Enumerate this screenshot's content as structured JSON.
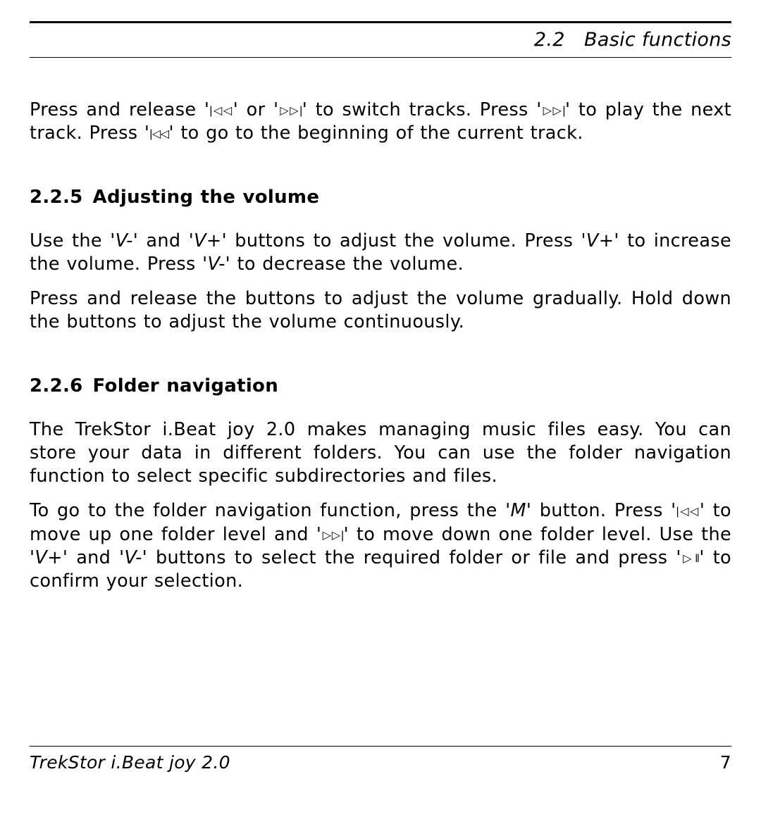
{
  "header": {
    "section": "2.2 Basic functions"
  },
  "intro": {
    "p1_a": "Press and release '",
    "p1_sym1": "|◁◁",
    "p1_b": "' or '",
    "p1_sym2": "▷▷|",
    "p1_c": "' to switch tracks.  Press '",
    "p1_sym3": "▷▷|",
    "p1_d": "' to play the next track.  Press '",
    "p1_sym4": "|◁◁",
    "p1_e": "' to go to the beginning of the current track."
  },
  "sec225": {
    "num": "2.2.5",
    "title": "Adjusting the volume",
    "p1_a": "Use the ",
    "p1_vminus": "'V-'",
    "p1_b": " and ",
    "p1_vplus": "'V+'",
    "p1_c": " buttons to adjust the volume.  Press ",
    "p1_vplus2": "'V+'",
    "p1_d": " to increase the volume.  Press ",
    "p1_vminus2": "'V-'",
    "p1_e": " to decrease the volume.",
    "p2": "Press and release the buttons to adjust the volume gradually.  Hold down the buttons to adjust the volume continuously."
  },
  "sec226": {
    "num": "2.2.6",
    "title": "Folder navigation",
    "p1": "The TrekStor i.Beat joy 2.0 makes managing music files easy.  You can store your data in different folders.  You can use the folder navigation function to select specific subdirectories and files.",
    "p2_a": "To go to the folder navigation function, press the ",
    "p2_m": "'M'",
    "p2_b": " button.  Press '",
    "p2_sym1": "|◁◁",
    "p2_c": "' to move up one folder level and '",
    "p2_sym2": "▷▷|",
    "p2_d": "' to move down one folder level.  Use the ",
    "p2_vplus": "'V+'",
    "p2_e": " and ",
    "p2_vminus": "'V-'",
    "p2_f": " buttons to select the required folder or file and press '",
    "p2_sym3": "▷ ‖",
    "p2_g": "' to confirm your selection."
  },
  "footer": {
    "product": "TrekStor i.Beat joy 2.0",
    "page": "7"
  }
}
